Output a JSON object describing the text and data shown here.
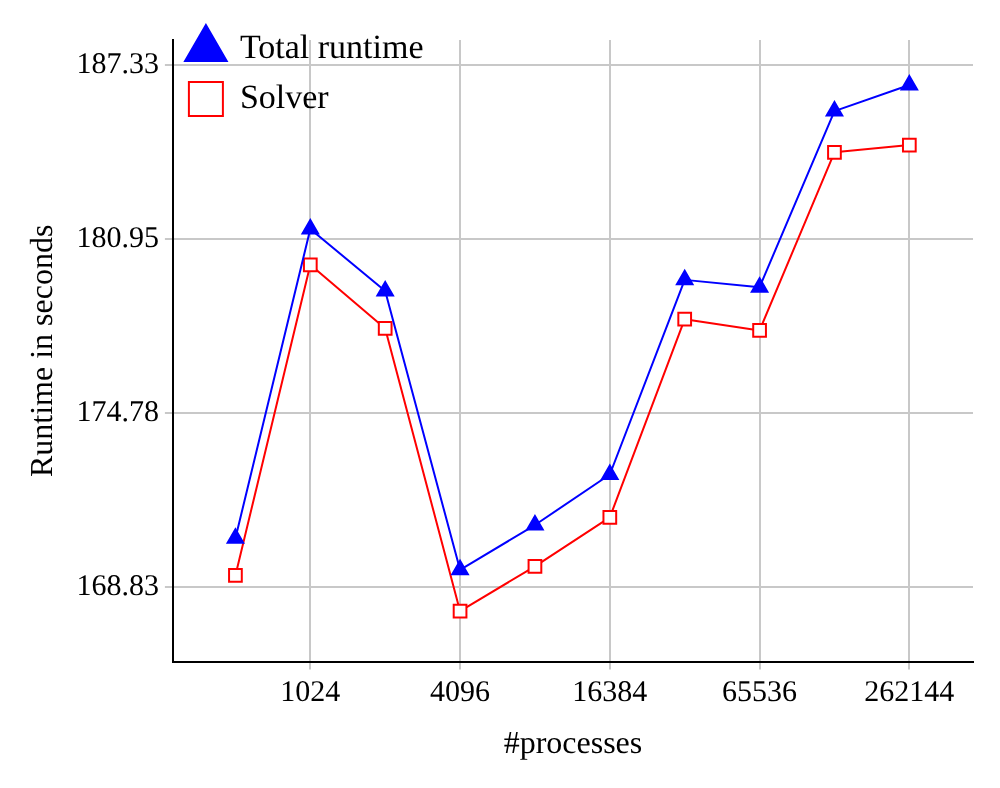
{
  "chart_data": {
    "type": "line",
    "xlabel": "#processes",
    "ylabel": "Runtime in seconds",
    "log": "xy",
    "x": [
      512,
      1024,
      2048,
      4096,
      8192,
      16384,
      32768,
      65536,
      131072,
      262144
    ],
    "series": [
      {
        "name": "Total runtime",
        "color": "#0000ff",
        "marker": "triangle",
        "values": [
          170.47,
          181.31,
          179.08,
          169.4,
          170.92,
          172.65,
          179.48,
          179.22,
          185.62,
          186.59
        ]
      },
      {
        "name": "Solver",
        "color": "#ff0000",
        "marker": "square",
        "values": [
          169.21,
          180.02,
          177.75,
          168.01,
          169.52,
          171.18,
          178.08,
          177.68,
          184.1,
          184.37
        ]
      }
    ],
    "xlim": [
      287,
      472600
    ],
    "xticks": [
      1024,
      4096,
      16384,
      65536,
      262144
    ],
    "ylim": [
      166.33,
      188.27
    ],
    "yticks": [
      168.83,
      174.78,
      180.95,
      187.33
    ],
    "grid": true,
    "legend": "top left",
    "line_style": "solid"
  }
}
